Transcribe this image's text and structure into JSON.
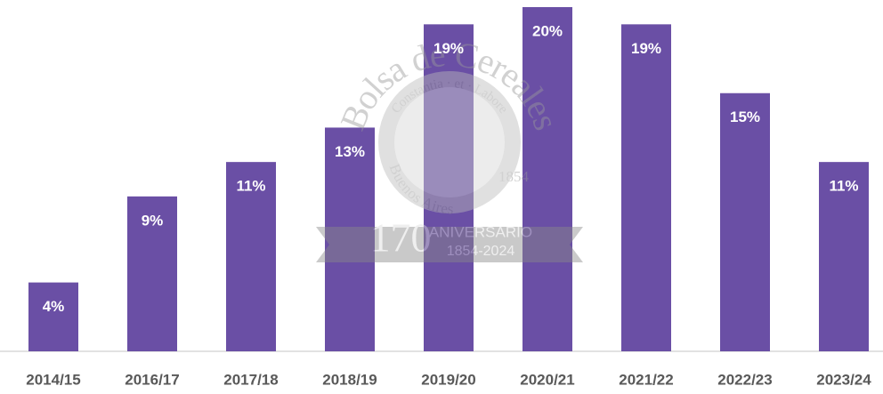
{
  "chart_data": {
    "type": "bar",
    "categories": [
      "2014/15",
      "2016/17",
      "2017/18",
      "2018/19",
      "2019/20",
      "2020/21",
      "2021/22",
      "2022/23",
      "2023/24"
    ],
    "values": [
      4,
      9,
      11,
      13,
      19,
      20,
      19,
      15,
      11
    ],
    "value_labels": [
      "4%",
      "9%",
      "11%",
      "13%",
      "19%",
      "20%",
      "19%",
      "15%",
      "11%"
    ],
    "color": "#6a4fa5"
  },
  "watermark": {
    "name": "Bolsa de Cereales",
    "motto": "Constantia · et · Labore",
    "city": "Buenos Aires",
    "year": "1854",
    "number": "170",
    "word": "ANIVERSARIO",
    "years": "1854-2024"
  }
}
